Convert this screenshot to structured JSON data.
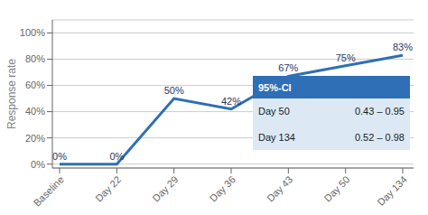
{
  "chart_data": {
    "type": "line",
    "categories": [
      "Baseline",
      "Day 22",
      "Day 29",
      "Day 36",
      "Day 43",
      "Day 50",
      "Day 134"
    ],
    "values": [
      0,
      0,
      50,
      42,
      67,
      75,
      83
    ],
    "value_labels": [
      "0%",
      "0%",
      "50%",
      "42%",
      "67%",
      "75%",
      "83%"
    ],
    "data_labels": true,
    "color": "#2E6FB5",
    "ylabel": "Response rate",
    "ylim": [
      -3,
      110
    ],
    "yticks": [
      {
        "value": 0,
        "label": "0%"
      },
      {
        "value": 20,
        "label": "20%"
      },
      {
        "value": 40,
        "label": "40%"
      },
      {
        "value": 60,
        "label": "60%"
      },
      {
        "value": 80,
        "label": "80%"
      },
      {
        "value": 100,
        "label": "100%"
      }
    ],
    "grid": true,
    "annotation": {
      "header": "95%-CI",
      "rows": [
        [
          "Day 50",
          "0.43 – 0.95"
        ],
        [
          "Day 134",
          "0.52 – 0.98"
        ]
      ]
    }
  }
}
